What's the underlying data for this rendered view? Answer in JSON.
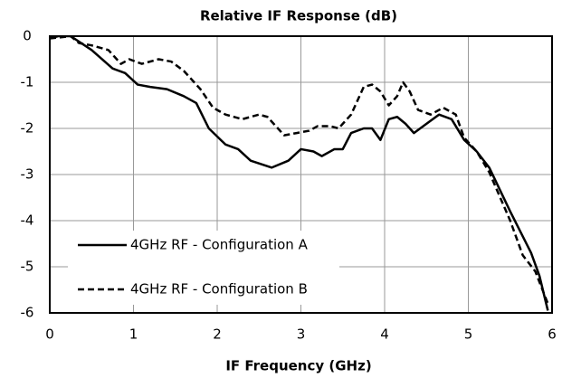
{
  "chart_data": {
    "type": "line",
    "title": "Relative IF Response (dB)",
    "xlabel": "IF Frequency  (GHz)",
    "xlim": [
      0,
      6
    ],
    "xticks": [
      0,
      1,
      2,
      3,
      4,
      5,
      6
    ],
    "ylim": [
      -6,
      0
    ],
    "yticks": [
      0,
      -1,
      -2,
      -3,
      -4,
      -5,
      -6
    ],
    "grid": true,
    "legend": "lower left",
    "series": [
      {
        "name": "4GHz RF - Configuration A",
        "color": "#000000",
        "dash": "solid",
        "x": [
          0,
          0.1,
          0.25,
          0.5,
          0.75,
          0.9,
          1.05,
          1.2,
          1.4,
          1.6,
          1.75,
          1.9,
          2.1,
          2.25,
          2.4,
          2.65,
          2.85,
          3.0,
          3.15,
          3.25,
          3.4,
          3.5,
          3.6,
          3.75,
          3.85,
          3.95,
          4.05,
          4.15,
          4.25,
          4.35,
          4.5,
          4.65,
          4.8,
          4.95,
          5.1,
          5.25,
          5.5,
          5.75,
          5.85,
          5.95
        ],
        "values": [
          -0.05,
          0,
          0,
          -0.3,
          -0.7,
          -0.8,
          -1.05,
          -1.1,
          -1.15,
          -1.3,
          -1.45,
          -2.0,
          -2.35,
          -2.45,
          -2.7,
          -2.85,
          -2.7,
          -2.45,
          -2.5,
          -2.6,
          -2.45,
          -2.45,
          -2.1,
          -2.0,
          -2.0,
          -2.25,
          -1.8,
          -1.75,
          -1.9,
          -2.1,
          -1.9,
          -1.7,
          -1.8,
          -2.25,
          -2.5,
          -2.85,
          -3.8,
          -4.7,
          -5.2,
          -5.95
        ]
      },
      {
        "name": "4GHz RF - Configuration B",
        "color": "#000000",
        "dash": "dashed",
        "x": [
          0,
          0.25,
          0.35,
          0.5,
          0.7,
          0.85,
          0.95,
          1.1,
          1.3,
          1.45,
          1.6,
          1.8,
          1.95,
          2.1,
          2.3,
          2.5,
          2.6,
          2.8,
          2.95,
          3.1,
          3.2,
          3.35,
          3.45,
          3.6,
          3.75,
          3.85,
          3.95,
          4.05,
          4.15,
          4.22,
          4.3,
          4.4,
          4.55,
          4.7,
          4.85,
          4.95,
          5.1,
          5.25,
          5.5,
          5.65,
          5.8,
          5.95
        ],
        "values": [
          -0.05,
          0,
          -0.15,
          -0.2,
          -0.3,
          -0.6,
          -0.5,
          -0.6,
          -0.5,
          -0.55,
          -0.75,
          -1.15,
          -1.55,
          -1.7,
          -1.8,
          -1.7,
          -1.75,
          -2.15,
          -2.1,
          -2.05,
          -1.95,
          -1.95,
          -2.0,
          -1.7,
          -1.1,
          -1.05,
          -1.2,
          -1.5,
          -1.3,
          -1.0,
          -1.2,
          -1.6,
          -1.7,
          -1.55,
          -1.7,
          -2.2,
          -2.5,
          -2.95,
          -4.0,
          -4.75,
          -5.1,
          -5.8
        ]
      }
    ]
  }
}
